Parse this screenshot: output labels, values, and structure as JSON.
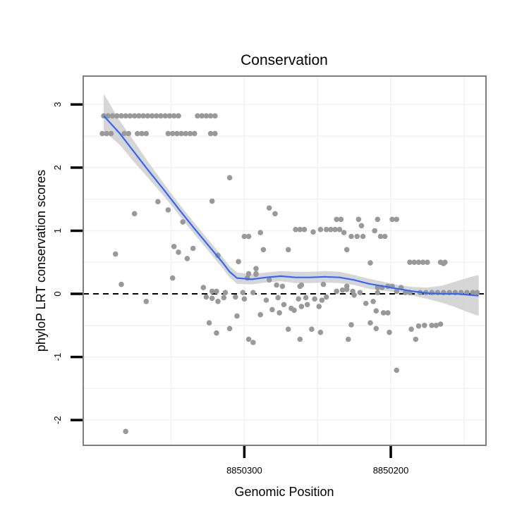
{
  "chart_data": {
    "type": "scatter",
    "title": "Conservation",
    "xlabel": "Genomic Position",
    "ylabel": "phyloP LRT conservation scores",
    "x_reversed": true,
    "xlim": [
      8850410,
      8850135
    ],
    "ylim": [
      -2.4,
      3.45
    ],
    "x_ticks": [
      {
        "value": 8850300,
        "label": "8850300"
      },
      {
        "value": 8850200,
        "label": "8850200"
      }
    ],
    "y_ticks": [
      {
        "value": 3,
        "label": "3"
      },
      {
        "value": 2,
        "label": "2"
      },
      {
        "value": 1,
        "label": "1"
      },
      {
        "value": 0,
        "label": "0"
      },
      {
        "value": -1,
        "label": "-1"
      },
      {
        "value": -2,
        "label": "-2"
      }
    ],
    "reference_line": {
      "y": 0,
      "style": "dashed"
    },
    "colors": {
      "points": "#999999",
      "smooth": "#3366ff",
      "ribbon": "#cccccc",
      "panel_border": "#7f7f7f",
      "grid": "#f2f2f2"
    },
    "smooth": {
      "x": [
        8850396,
        8850385,
        8850375,
        8850365,
        8850355,
        8850345,
        8850335,
        8850325,
        8850315,
        8850310,
        8850305,
        8850295,
        8850285,
        8850275,
        8850265,
        8850255,
        8850245,
        8850235,
        8850225,
        8850215,
        8850205,
        8850195,
        8850185,
        8850175,
        8850165,
        8850155,
        8850145,
        8850140
      ],
      "y": [
        2.82,
        2.54,
        2.24,
        1.94,
        1.65,
        1.35,
        1.06,
        0.78,
        0.5,
        0.35,
        0.25,
        0.23,
        0.26,
        0.28,
        0.26,
        0.26,
        0.27,
        0.26,
        0.22,
        0.16,
        0.12,
        0.08,
        0.04,
        0.01,
        0.0,
        0.0,
        -0.02,
        -0.03
      ],
      "lower": [
        2.58,
        2.36,
        2.08,
        1.82,
        1.55,
        1.26,
        0.97,
        0.69,
        0.41,
        0.26,
        0.16,
        0.15,
        0.18,
        0.2,
        0.17,
        0.17,
        0.18,
        0.17,
        0.14,
        0.08,
        0.05,
        0.02,
        -0.03,
        -0.08,
        -0.14,
        -0.22,
        -0.31,
        -0.35
      ],
      "upper": [
        3.17,
        2.74,
        2.41,
        2.07,
        1.75,
        1.44,
        1.15,
        0.87,
        0.59,
        0.44,
        0.34,
        0.31,
        0.34,
        0.36,
        0.35,
        0.35,
        0.36,
        0.35,
        0.3,
        0.24,
        0.19,
        0.14,
        0.11,
        0.1,
        0.13,
        0.2,
        0.27,
        0.3
      ]
    },
    "points": [
      {
        "x": 8850396,
        "y": 2.82
      },
      {
        "x": 8850393,
        "y": 2.82
      },
      {
        "x": 8850390,
        "y": 2.82
      },
      {
        "x": 8850387,
        "y": 2.82
      },
      {
        "x": 8850384,
        "y": 2.82
      },
      {
        "x": 8850381,
        "y": 2.82
      },
      {
        "x": 8850378,
        "y": 2.82
      },
      {
        "x": 8850375,
        "y": 2.82
      },
      {
        "x": 8850372,
        "y": 2.82
      },
      {
        "x": 8850369,
        "y": 2.82
      },
      {
        "x": 8850366,
        "y": 2.82
      },
      {
        "x": 8850363,
        "y": 2.82
      },
      {
        "x": 8850360,
        "y": 2.82
      },
      {
        "x": 8850357,
        "y": 2.82
      },
      {
        "x": 8850354,
        "y": 2.82
      },
      {
        "x": 8850351,
        "y": 2.82
      },
      {
        "x": 8850348,
        "y": 2.82
      },
      {
        "x": 8850345,
        "y": 2.82
      },
      {
        "x": 8850332,
        "y": 2.82
      },
      {
        "x": 8850329,
        "y": 2.82
      },
      {
        "x": 8850326,
        "y": 2.82
      },
      {
        "x": 8850323,
        "y": 2.82
      },
      {
        "x": 8850320,
        "y": 2.82
      },
      {
        "x": 8850397,
        "y": 2.54
      },
      {
        "x": 8850394,
        "y": 2.54
      },
      {
        "x": 8850391,
        "y": 2.54
      },
      {
        "x": 8850382,
        "y": 2.54
      },
      {
        "x": 8850379,
        "y": 2.54
      },
      {
        "x": 8850373,
        "y": 2.54
      },
      {
        "x": 8850370,
        "y": 2.54
      },
      {
        "x": 8850367,
        "y": 2.54
      },
      {
        "x": 8850352,
        "y": 2.54
      },
      {
        "x": 8850349,
        "y": 2.54
      },
      {
        "x": 8850346,
        "y": 2.54
      },
      {
        "x": 8850343,
        "y": 2.54
      },
      {
        "x": 8850340,
        "y": 2.54
      },
      {
        "x": 8850337,
        "y": 2.54
      },
      {
        "x": 8850334,
        "y": 2.54
      },
      {
        "x": 8850323,
        "y": 2.54
      },
      {
        "x": 8850320,
        "y": 2.54
      },
      {
        "x": 8850310,
        "y": 1.84
      },
      {
        "x": 8850322,
        "y": 1.47
      },
      {
        "x": 8850359,
        "y": 1.46
      },
      {
        "x": 8850283,
        "y": 1.36
      },
      {
        "x": 8850352,
        "y": 1.33
      },
      {
        "x": 8850375,
        "y": 1.27
      },
      {
        "x": 8850279,
        "y": 1.27
      },
      {
        "x": 8850342,
        "y": 1.14
      },
      {
        "x": 8850237,
        "y": 1.18
      },
      {
        "x": 8850234,
        "y": 1.18
      },
      {
        "x": 8850222,
        "y": 1.18
      },
      {
        "x": 8850199,
        "y": 1.18
      },
      {
        "x": 8850196,
        "y": 1.18
      },
      {
        "x": 8850209,
        "y": 1.18
      },
      {
        "x": 8850265,
        "y": 1.02
      },
      {
        "x": 8850262,
        "y": 1.02
      },
      {
        "x": 8850259,
        "y": 1.02
      },
      {
        "x": 8850248,
        "y": 1.02
      },
      {
        "x": 8850244,
        "y": 1.02
      },
      {
        "x": 8850241,
        "y": 1.02
      },
      {
        "x": 8850238,
        "y": 1.02
      },
      {
        "x": 8850235,
        "y": 1.02
      },
      {
        "x": 8850211,
        "y": 1.0
      },
      {
        "x": 8850253,
        "y": 0.98
      },
      {
        "x": 8850289,
        "y": 0.97
      },
      {
        "x": 8850232,
        "y": 0.97
      },
      {
        "x": 8850227,
        "y": 0.91
      },
      {
        "x": 8850223,
        "y": 0.91
      },
      {
        "x": 8850219,
        "y": 0.91
      },
      {
        "x": 8850207,
        "y": 0.91
      },
      {
        "x": 8850204,
        "y": 0.91
      },
      {
        "x": 8850300,
        "y": 0.91
      },
      {
        "x": 8850297,
        "y": 0.91
      },
      {
        "x": 8850220,
        "y": 1.08
      },
      {
        "x": 8850348,
        "y": 0.75
      },
      {
        "x": 8850335,
        "y": 0.72
      },
      {
        "x": 8850345,
        "y": 0.66
      },
      {
        "x": 8850287,
        "y": 0.7
      },
      {
        "x": 8850270,
        "y": 0.7
      },
      {
        "x": 8850388,
        "y": 0.63
      },
      {
        "x": 8850318,
        "y": 0.61
      },
      {
        "x": 8850339,
        "y": 0.56
      },
      {
        "x": 8850230,
        "y": 0.7
      },
      {
        "x": 8850304,
        "y": 0.51
      },
      {
        "x": 8850187,
        "y": 0.5
      },
      {
        "x": 8850184,
        "y": 0.5
      },
      {
        "x": 8850181,
        "y": 0.5
      },
      {
        "x": 8850178,
        "y": 0.5
      },
      {
        "x": 8850175,
        "y": 0.5
      },
      {
        "x": 8850166,
        "y": 0.5
      },
      {
        "x": 8850163,
        "y": 0.5
      },
      {
        "x": 8850214,
        "y": 0.49
      },
      {
        "x": 8850164,
        "y": 0.48
      },
      {
        "x": 8850292,
        "y": 0.4
      },
      {
        "x": 8850297,
        "y": 0.32
      },
      {
        "x": 8850292,
        "y": 0.32
      },
      {
        "x": 8850292,
        "y": 0.31
      },
      {
        "x": 8850349,
        "y": 0.25
      },
      {
        "x": 8850298,
        "y": 0.25
      },
      {
        "x": 8850283,
        "y": 0.22
      },
      {
        "x": 8850278,
        "y": 0.14
      },
      {
        "x": 8850274,
        "y": 0.12
      },
      {
        "x": 8850262,
        "y": 0.12
      },
      {
        "x": 8850246,
        "y": 0.15
      },
      {
        "x": 8850261,
        "y": 0.14
      },
      {
        "x": 8850230,
        "y": 0.12
      },
      {
        "x": 8850384,
        "y": 0.15
      },
      {
        "x": 8850328,
        "y": 0.1
      },
      {
        "x": 8850230,
        "y": 0.07
      },
      {
        "x": 8850209,
        "y": 0.1
      },
      {
        "x": 8850206,
        "y": 0.1
      },
      {
        "x": 8850202,
        "y": 0.12
      },
      {
        "x": 8850199,
        "y": 0.12
      },
      {
        "x": 8850193,
        "y": 0.1
      },
      {
        "x": 8850196,
        "y": 0.04
      },
      {
        "x": 8850322,
        "y": 0.04
      },
      {
        "x": 8850319,
        "y": 0.04
      },
      {
        "x": 8850313,
        "y": 0.02
      },
      {
        "x": 8850301,
        "y": 0.02
      },
      {
        "x": 8850294,
        "y": 0.02
      },
      {
        "x": 8850237,
        "y": 0.04
      },
      {
        "x": 8850233,
        "y": 0.06
      },
      {
        "x": 8850226,
        "y": 0.04
      },
      {
        "x": 8850221,
        "y": 0.02
      },
      {
        "x": 8850209,
        "y": 0.02
      },
      {
        "x": 8850190,
        "y": 0.02
      },
      {
        "x": 8850187,
        "y": 0.02
      },
      {
        "x": 8850180,
        "y": 0.02
      },
      {
        "x": 8850176,
        "y": 0.02
      },
      {
        "x": 8850172,
        "y": 0.02
      },
      {
        "x": 8850168,
        "y": 0.02
      },
      {
        "x": 8850164,
        "y": 0.02
      },
      {
        "x": 8850160,
        "y": 0.02
      },
      {
        "x": 8850156,
        "y": 0.02
      },
      {
        "x": 8850152,
        "y": 0.02
      },
      {
        "x": 8850148,
        "y": 0.02
      },
      {
        "x": 8850144,
        "y": 0.02
      },
      {
        "x": 8850141,
        "y": 0.02
      },
      {
        "x": 8850326,
        "y": -0.05
      },
      {
        "x": 8850322,
        "y": -0.07
      },
      {
        "x": 8850318,
        "y": -0.12
      },
      {
        "x": 8850314,
        "y": -0.06
      },
      {
        "x": 8850306,
        "y": -0.05
      },
      {
        "x": 8850300,
        "y": -0.08
      },
      {
        "x": 8850285,
        "y": -0.1
      },
      {
        "x": 8850277,
        "y": -0.06
      },
      {
        "x": 8850263,
        "y": -0.08
      },
      {
        "x": 8850258,
        "y": -0.06
      },
      {
        "x": 8850252,
        "y": -0.08
      },
      {
        "x": 8850247,
        "y": -0.1
      },
      {
        "x": 8850244,
        "y": -0.05
      },
      {
        "x": 8850225,
        "y": -0.02
      },
      {
        "x": 8850217,
        "y": -0.15
      },
      {
        "x": 8850212,
        "y": -0.12
      },
      {
        "x": 8850249,
        "y": -0.2
      },
      {
        "x": 8850257,
        "y": -0.17
      },
      {
        "x": 8850367,
        "y": -0.12
      },
      {
        "x": 8850273,
        "y": -0.17
      },
      {
        "x": 8850210,
        "y": -0.27
      },
      {
        "x": 8850205,
        "y": -0.3
      },
      {
        "x": 8850202,
        "y": -0.3
      },
      {
        "x": 8850261,
        "y": -0.2
      },
      {
        "x": 8850281,
        "y": -0.25
      },
      {
        "x": 8850276,
        "y": -0.3
      },
      {
        "x": 8850289,
        "y": -0.33
      },
      {
        "x": 8850305,
        "y": -0.35
      },
      {
        "x": 8850268,
        "y": -0.23
      },
      {
        "x": 8850266,
        "y": -0.26
      },
      {
        "x": 8850324,
        "y": -0.46
      },
      {
        "x": 8850310,
        "y": -0.55
      },
      {
        "x": 8850270,
        "y": -0.56
      },
      {
        "x": 8850254,
        "y": -0.56
      },
      {
        "x": 8850248,
        "y": -0.61
      },
      {
        "x": 8850227,
        "y": -0.49
      },
      {
        "x": 8850214,
        "y": -0.46
      },
      {
        "x": 8850210,
        "y": -0.55
      },
      {
        "x": 8850201,
        "y": -0.61
      },
      {
        "x": 8850186,
        "y": -0.56
      },
      {
        "x": 8850181,
        "y": -0.51
      },
      {
        "x": 8850177,
        "y": -0.5
      },
      {
        "x": 8850172,
        "y": -0.5
      },
      {
        "x": 8850169,
        "y": -0.5
      },
      {
        "x": 8850166,
        "y": -0.48
      },
      {
        "x": 8850319,
        "y": -0.62
      },
      {
        "x": 8850262,
        "y": -0.72
      },
      {
        "x": 8850229,
        "y": -0.72
      },
      {
        "x": 8850183,
        "y": -0.72
      },
      {
        "x": 8850297,
        "y": -0.72
      },
      {
        "x": 8850294,
        "y": -0.77
      },
      {
        "x": 8850196,
        "y": -1.21
      },
      {
        "x": 8850381,
        "y": -2.18
      }
    ]
  }
}
